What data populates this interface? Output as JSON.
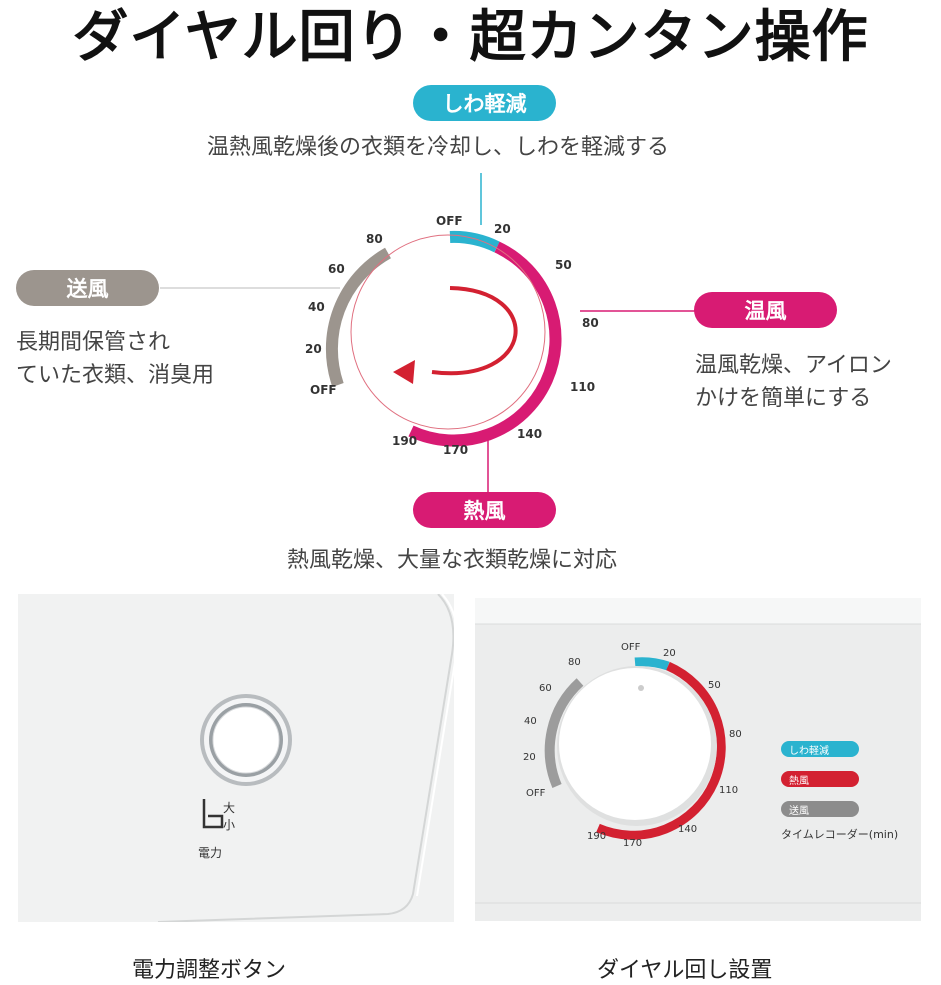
{
  "title": "ダイヤル回り・超カンタン操作",
  "modes": {
    "wrinkle": {
      "label": "しわ軽減",
      "desc": "温熱風乾燥後の衣類を冷却し、しわを軽減する",
      "color": "#2ab3cf"
    },
    "warm": {
      "label": "温風",
      "desc_lines": [
        "温風乾燥、アイロン",
        "かけを簡単にする"
      ],
      "color": "#d81b73"
    },
    "fan": {
      "label": "送風",
      "desc_lines": [
        "長期間保管され",
        "ていた衣類、消臭用"
      ],
      "color": "#9c958e"
    },
    "hot": {
      "label": "熱風",
      "desc": "熱風乾燥、大量な衣類乾燥に対応",
      "color": "#d81b73"
    }
  },
  "dial": {
    "right_ticks": [
      "OFF",
      "20",
      "50",
      "80",
      "110",
      "140",
      "170",
      "190"
    ],
    "left_ticks": [
      "80",
      "60",
      "40",
      "20",
      "OFF"
    ]
  },
  "power_button": {
    "label_large": "大",
    "label_small": "小",
    "label_power": "電力",
    "caption": "電力調整ボタン"
  },
  "dial_photo": {
    "right_ticks": [
      "OFF",
      "20",
      "50",
      "80",
      "110",
      "140",
      "170",
      "190"
    ],
    "left_ticks": [
      "80",
      "60",
      "40",
      "20",
      "OFF"
    ],
    "legend": [
      {
        "label": "しわ軽減",
        "color": "#2ab3cf"
      },
      {
        "label": "熱風",
        "color": "#d32131"
      },
      {
        "label": "送風",
        "color": "#8c8c8c"
      }
    ],
    "legend_title": "タイムレコーダー(min)",
    "caption": "ダイヤル回し設置"
  }
}
